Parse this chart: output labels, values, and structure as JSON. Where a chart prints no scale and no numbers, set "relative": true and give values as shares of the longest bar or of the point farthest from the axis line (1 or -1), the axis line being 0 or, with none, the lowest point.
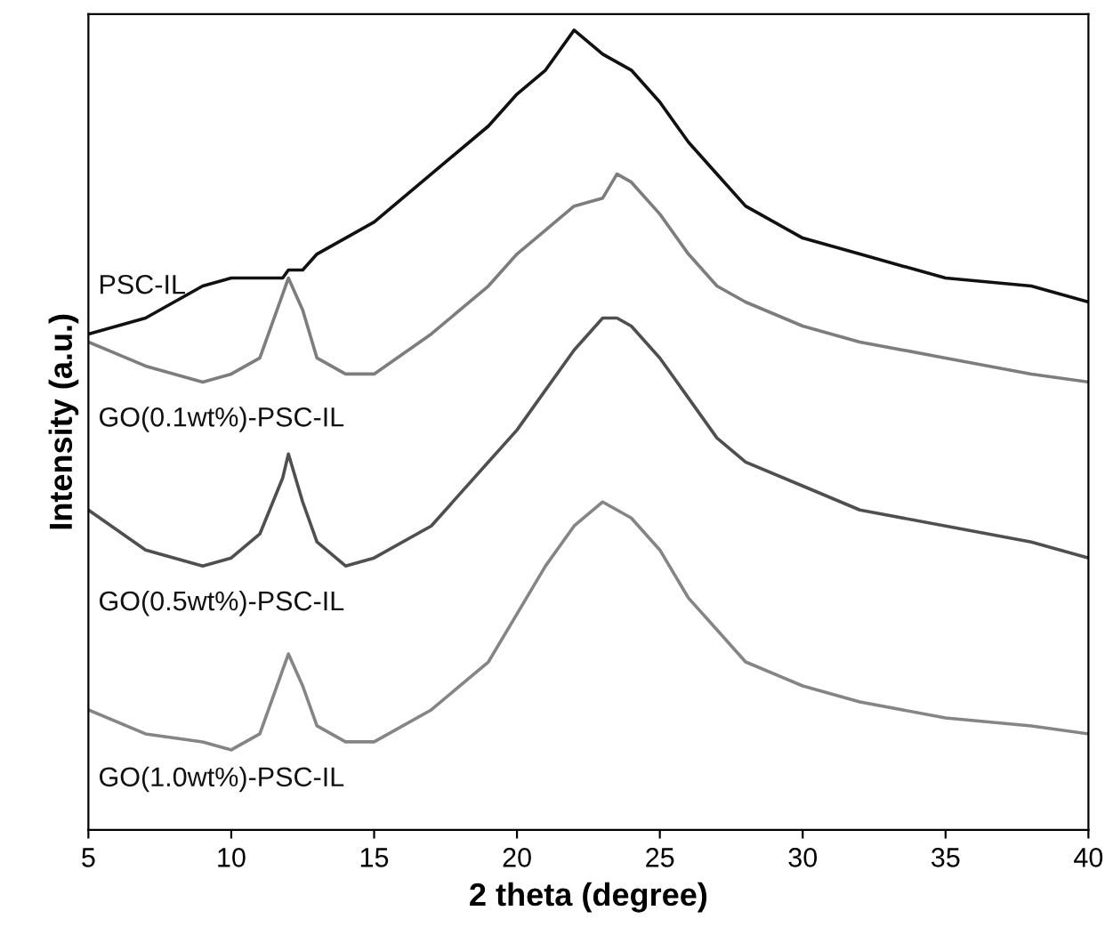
{
  "chart_data": {
    "type": "line",
    "relative": true,
    "xlabel": "2 theta (degree)",
    "ylabel": "Intensity (a.u.)",
    "x": [
      5,
      7,
      9,
      10,
      11,
      11.8,
      12,
      12.5,
      13,
      14,
      15,
      17,
      19,
      20,
      21,
      22,
      23,
      23.5,
      24,
      25,
      26,
      27,
      28,
      30,
      32,
      35,
      38,
      40
    ],
    "xlim": [
      5,
      40
    ],
    "xticks": [
      5,
      10,
      15,
      20,
      25,
      30,
      35,
      40
    ],
    "tick_labels": "x",
    "legend": false,
    "grid": false,
    "marker": "none",
    "line_style": "solid",
    "series": [
      {
        "name": "PSC-IL",
        "color": "#111111",
        "values": [
          0.62,
          0.64,
          0.68,
          0.69,
          0.69,
          0.69,
          0.7,
          0.7,
          0.72,
          0.74,
          0.76,
          0.82,
          0.88,
          0.92,
          0.95,
          1.0,
          0.97,
          0.96,
          0.95,
          0.91,
          0.86,
          0.82,
          0.78,
          0.74,
          0.72,
          0.69,
          0.68,
          0.66
        ]
      },
      {
        "name": "GO(0.1wt%)-PSC-IL",
        "color": "#7d7d7d",
        "values": [
          0.61,
          0.58,
          0.56,
          0.57,
          0.59,
          0.67,
          0.69,
          0.65,
          0.59,
          0.57,
          0.57,
          0.62,
          0.68,
          0.72,
          0.75,
          0.78,
          0.79,
          0.82,
          0.81,
          0.77,
          0.72,
          0.68,
          0.66,
          0.63,
          0.61,
          0.59,
          0.57,
          0.56
        ]
      },
      {
        "name": "GO(0.5wt%)-PSC-IL",
        "color": "#4f4f4f",
        "values": [
          0.4,
          0.35,
          0.33,
          0.34,
          0.37,
          0.44,
          0.47,
          0.41,
          0.36,
          0.33,
          0.34,
          0.38,
          0.46,
          0.5,
          0.55,
          0.6,
          0.64,
          0.64,
          0.63,
          0.59,
          0.54,
          0.49,
          0.46,
          0.43,
          0.4,
          0.38,
          0.36,
          0.34
        ]
      },
      {
        "name": "GO(1.0wt%)-PSC-IL",
        "color": "#858585",
        "values": [
          0.15,
          0.12,
          0.11,
          0.1,
          0.12,
          0.2,
          0.22,
          0.18,
          0.13,
          0.11,
          0.11,
          0.15,
          0.21,
          0.27,
          0.33,
          0.38,
          0.41,
          0.4,
          0.39,
          0.35,
          0.29,
          0.25,
          0.21,
          0.18,
          0.16,
          0.14,
          0.13,
          0.12
        ]
      }
    ]
  }
}
